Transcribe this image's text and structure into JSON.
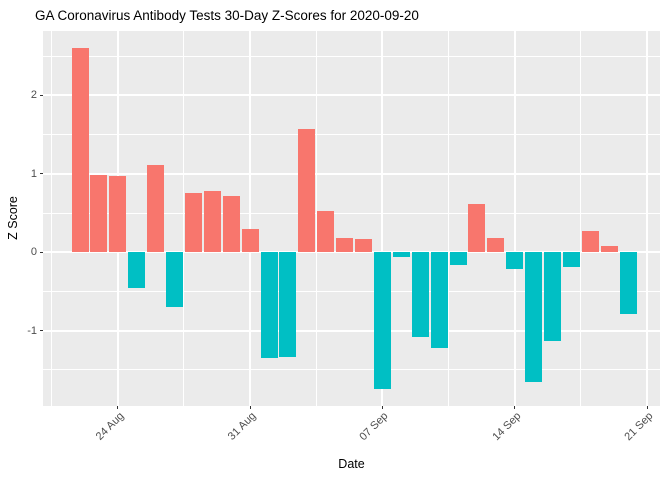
{
  "title": "GA Coronavirus Antibody Tests 30-Day Z-Scores for 2020-09-20",
  "chart_data": {
    "type": "bar",
    "title": "GA Coronavirus Antibody Tests 30-Day Z-Scores for 2020-09-20",
    "xlabel": "Date",
    "ylabel": "Z Score",
    "x": [
      "2020-08-22",
      "2020-08-23",
      "2020-08-24",
      "2020-08-25",
      "2020-08-26",
      "2020-08-27",
      "2020-08-28",
      "2020-08-29",
      "2020-08-30",
      "2020-08-31",
      "2020-09-01",
      "2020-09-02",
      "2020-09-03",
      "2020-09-04",
      "2020-09-05",
      "2020-09-06",
      "2020-09-07",
      "2020-09-08",
      "2020-09-09",
      "2020-09-10",
      "2020-09-11",
      "2020-09-12",
      "2020-09-13",
      "2020-09-14",
      "2020-09-15",
      "2020-09-16",
      "2020-09-17",
      "2020-09-18",
      "2020-09-19",
      "2020-09-20"
    ],
    "values": [
      2.6,
      0.99,
      0.97,
      -0.46,
      1.11,
      -0.7,
      0.76,
      0.78,
      0.72,
      0.3,
      -1.35,
      -1.34,
      1.57,
      0.53,
      0.18,
      0.17,
      -1.74,
      -0.06,
      -1.08,
      -1.22,
      -0.16,
      0.62,
      0.18,
      -0.21,
      -1.65,
      -1.13,
      -0.19,
      0.27,
      0.08,
      -0.79
    ],
    "positive_color": "#F8766D",
    "negative_color": "#00BFC4",
    "ylim": [
      -1.96,
      2.82
    ],
    "y_ticks": [
      {
        "v": -1,
        "label": "-1"
      },
      {
        "v": 0,
        "label": "0"
      },
      {
        "v": 1,
        "label": "1"
      },
      {
        "v": 2,
        "label": "2"
      }
    ],
    "y_minor_ticks": [
      -1.5,
      -0.5,
      0.5,
      1.5,
      2.5
    ],
    "x_ticks": [
      {
        "index": 2,
        "label": "24 Aug"
      },
      {
        "index": 9,
        "label": "31 Aug"
      },
      {
        "index": 16,
        "label": "07 Sep"
      },
      {
        "index": 23,
        "label": "14 Sep"
      },
      {
        "index": 30,
        "label": "21 Sep"
      }
    ],
    "x_minor_indices": [
      -1.5,
      5.5,
      12.5,
      19.5,
      26.5
    ],
    "panel_bg": "#EBEBEB",
    "grid_color": "#FFFFFF",
    "tick_color": "#333333",
    "axis_text_color": "#4D4D4D",
    "title_color": "#000000",
    "legend": "none",
    "grid": true
  }
}
